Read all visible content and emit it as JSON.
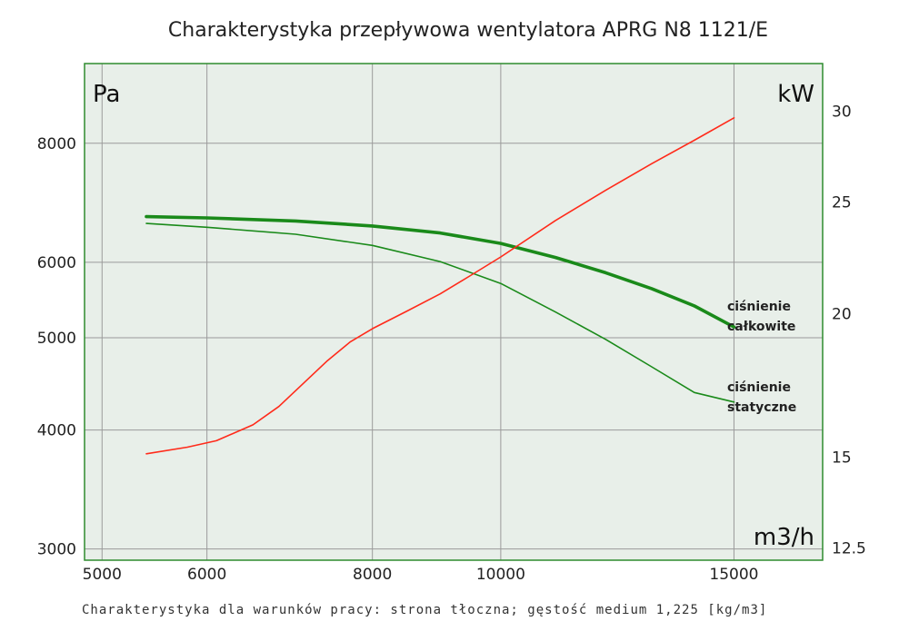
{
  "chart_data": {
    "type": "line",
    "title": "Charakterystyka przepływowa wentylatora APRG N8 1121/E",
    "note": "Charakterystyka dla warunków pracy: strona tłoczna; gęstość medium 1,225 [kg/m3]",
    "x_unit": "m3/h",
    "y_unit_left": "Pa",
    "y_unit_right": "kW",
    "x_scale": "log",
    "y_scale": "log",
    "xlim": [
      4850,
      17500
    ],
    "ylim_left": [
      2920,
      9700
    ],
    "ylim_right": [
      12.2,
      33.0
    ],
    "x_ticks": [
      "5000",
      "6000",
      "8000",
      "10000",
      "15000"
    ],
    "y_ticks_left": [
      "3000",
      "4000",
      "5000",
      "6000",
      "8000"
    ],
    "y_ticks_right": [
      "12.5",
      "15",
      "20",
      "25",
      "30"
    ],
    "grid": true,
    "colors": {
      "plot_bg": "#e8efe9",
      "frame": "#2e8b2e",
      "grid": "#9a9a9a",
      "total_pressure": "#1a8a1a",
      "static_pressure": "#1a8a1a",
      "power": "#ff2a1a"
    },
    "series": [
      {
        "name": "ciśnienie całkowite",
        "axis": "left",
        "x": [
          5400,
          6000,
          7000,
          8000,
          9000,
          10000,
          11000,
          12000,
          13000,
          14000,
          15000
        ],
        "y": [
          6700,
          6680,
          6630,
          6550,
          6440,
          6280,
          6070,
          5850,
          5630,
          5400,
          5130
        ]
      },
      {
        "name": "ciśnienie statyczne",
        "axis": "left",
        "x": [
          5400,
          6000,
          7000,
          8000,
          9000,
          10000,
          11000,
          12000,
          13000,
          14000,
          15000
        ],
        "y": [
          6590,
          6530,
          6420,
          6250,
          6010,
          5700,
          5320,
          4980,
          4660,
          4380,
          4280
        ]
      },
      {
        "name": "power",
        "axis": "right",
        "x": [
          5400,
          5800,
          6100,
          6500,
          6800,
          7100,
          7400,
          7700,
          8000,
          8500,
          9000,
          9500,
          10000,
          11000,
          12000,
          13000,
          14000,
          15000
        ],
        "y": [
          15.1,
          15.3,
          15.5,
          16.0,
          16.6,
          17.4,
          18.2,
          18.9,
          19.4,
          20.1,
          20.8,
          21.6,
          22.4,
          24.1,
          25.6,
          27.0,
          28.3,
          29.6
        ]
      }
    ]
  }
}
